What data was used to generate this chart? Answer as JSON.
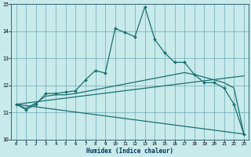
{
  "xlabel": "Humidex (Indice chaleur)",
  "ylabel": "",
  "bg_color": "#c8eaea",
  "grid_color": "#5599aa",
  "line_color": "#1a7070",
  "xlim": [
    -0.5,
    23.5
  ],
  "ylim": [
    10,
    15
  ],
  "xticks": [
    0,
    1,
    2,
    3,
    4,
    5,
    6,
    7,
    8,
    9,
    10,
    11,
    12,
    13,
    14,
    15,
    16,
    17,
    18,
    19,
    20,
    21,
    22,
    23
  ],
  "yticks": [
    10,
    11,
    12,
    13,
    14,
    15
  ],
  "line1_x": [
    0,
    1,
    2,
    3,
    4,
    5,
    6,
    7,
    8,
    9,
    10,
    11,
    12,
    13,
    14,
    15,
    16,
    17,
    18,
    19,
    20,
    21,
    22,
    23
  ],
  "line1_y": [
    11.3,
    11.1,
    11.3,
    11.7,
    11.7,
    11.75,
    11.8,
    12.2,
    12.55,
    12.45,
    14.1,
    13.95,
    13.8,
    14.9,
    13.7,
    13.2,
    12.85,
    12.85,
    12.4,
    12.1,
    12.1,
    11.9,
    11.3,
    10.2
  ],
  "line2_x": [
    0,
    1,
    2,
    3,
    4,
    5,
    6,
    7,
    8,
    9,
    10,
    11,
    12,
    13,
    14,
    15,
    16,
    17,
    18,
    19,
    20,
    21,
    22,
    23
  ],
  "line2_y": [
    11.3,
    11.15,
    11.35,
    11.6,
    11.65,
    11.65,
    11.7,
    11.77,
    11.84,
    11.91,
    11.98,
    12.05,
    12.12,
    12.19,
    12.26,
    12.33,
    12.4,
    12.47,
    12.4,
    12.3,
    12.2,
    12.1,
    11.9,
    10.2
  ],
  "line3_x": [
    0,
    23
  ],
  "line3_y": [
    11.3,
    10.2
  ],
  "line4_x": [
    0,
    23
  ],
  "line4_y": [
    11.3,
    12.35
  ]
}
